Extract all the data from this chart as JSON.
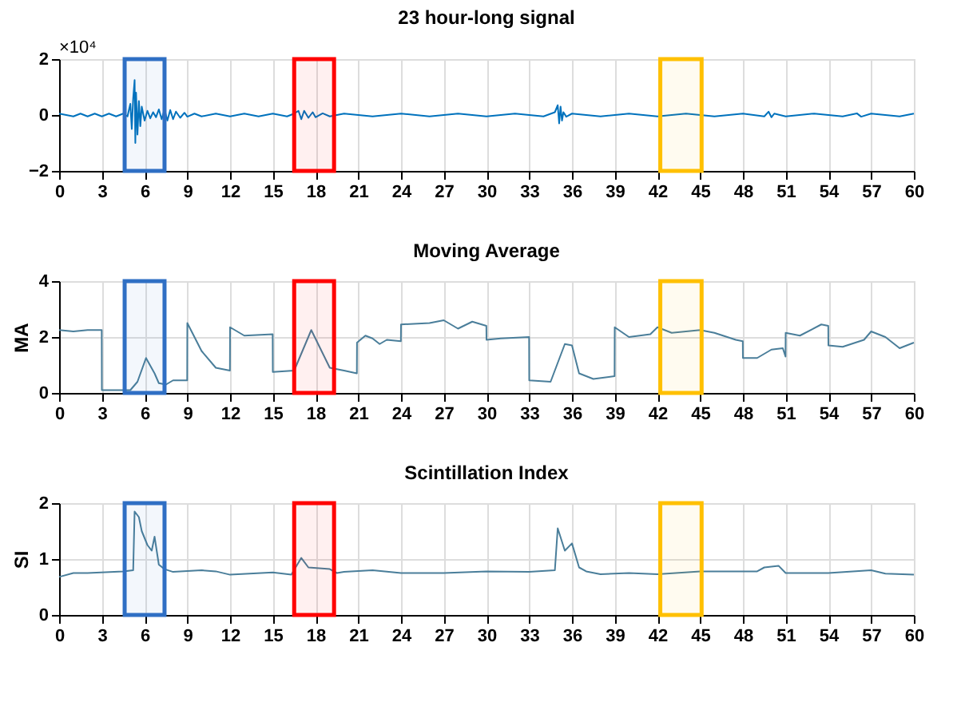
{
  "chart_data": [
    {
      "type": "line",
      "title": "23 hour-long signal",
      "annotations": [
        "×10⁴"
      ],
      "series": [
        {
          "color": "#0072bd",
          "x": [
            0,
            1,
            1.5,
            2,
            2.5,
            3,
            3.5,
            4,
            4.5,
            4.8,
            5,
            5.1,
            5.2,
            5.3,
            5.35,
            5.4,
            5.5,
            5.6,
            5.7,
            5.8,
            6,
            6.2,
            6.4,
            6.6,
            6.8,
            7,
            7.2,
            7.4,
            7.6,
            7.8,
            8,
            8.2,
            8.5,
            8.8,
            9,
            9.5,
            10,
            11,
            12,
            13,
            14,
            15,
            16,
            16.5,
            16.8,
            17,
            17.2,
            17.5,
            17.8,
            18,
            18.5,
            19,
            20,
            22,
            24,
            26,
            28,
            30,
            32,
            34,
            34.8,
            35,
            35.1,
            35.2,
            35.3,
            35.4,
            35.6,
            36,
            38,
            40,
            42,
            44,
            46,
            48,
            49.5,
            49.8,
            50,
            50.2,
            51,
            53,
            55,
            56,
            56.3,
            57,
            59,
            60
          ],
          "values": [
            0.05,
            -0.05,
            0.05,
            -0.05,
            0.05,
            -0.05,
            0.05,
            -0.05,
            0.05,
            -0.05,
            0.4,
            -0.5,
            0.6,
            1.25,
            -1.0,
            0.8,
            -0.7,
            0.5,
            -0.4,
            0.3,
            -0.2,
            0.15,
            -0.12,
            0.1,
            -0.08,
            0.2,
            -0.15,
            0.2,
            -0.2,
            0.18,
            -0.15,
            0.12,
            -0.1,
            0.08,
            -0.06,
            0.05,
            -0.05,
            0.05,
            -0.05,
            0.05,
            -0.05,
            0.05,
            -0.05,
            0.05,
            0.15,
            -0.15,
            0.15,
            -0.1,
            0.1,
            -0.08,
            0.06,
            -0.05,
            0.05,
            -0.05,
            0.05,
            -0.05,
            0.05,
            -0.05,
            0.05,
            -0.05,
            0.1,
            0.35,
            -0.3,
            0.3,
            -0.2,
            0.1,
            -0.06,
            0.05,
            -0.05,
            0.05,
            -0.05,
            0.05,
            -0.05,
            0.05,
            -0.05,
            0.12,
            -0.08,
            0.05,
            -0.05,
            0.05,
            -0.05,
            0.06,
            -0.06,
            0.05,
            -0.05,
            0.05
          ]
        }
      ],
      "xlim": [
        0,
        60
      ],
      "xticks": [
        0,
        3,
        6,
        9,
        12,
        15,
        18,
        21,
        24,
        27,
        30,
        33,
        36,
        39,
        42,
        45,
        48,
        51,
        54,
        57,
        60
      ],
      "ylim": [
        -2,
        2
      ],
      "yticks": [
        -2,
        0,
        2
      ],
      "grid": "x",
      "bands": [
        {
          "axis": "x",
          "from": 4.6,
          "to": 7.4,
          "color": "#2f6fc4"
        },
        {
          "axis": "x",
          "from": 16.5,
          "to": 19.3,
          "color": "#ff0000"
        },
        {
          "axis": "x",
          "from": 42.2,
          "to": 45.1,
          "color": "#ffc000"
        }
      ]
    },
    {
      "type": "line",
      "title": "Moving Average",
      "ylabel": "MA",
      "series": [
        {
          "color": "#4a7e9a",
          "x": [
            0,
            1,
            2,
            2.99,
            3,
            4,
            5,
            5.5,
            6.1,
            6.7,
            7,
            7.5,
            8,
            8.99,
            9,
            10,
            11,
            11.99,
            12,
            13,
            14.99,
            15,
            16.5,
            17.7,
            19,
            20,
            20.9,
            20.91,
            21.5,
            22,
            22.5,
            23,
            23.99,
            24,
            26,
            27,
            28,
            29,
            29.99,
            30,
            31,
            32.99,
            33,
            34.5,
            35.5,
            36,
            36.5,
            37.5,
            38.99,
            39,
            40,
            41.5,
            42,
            43,
            45,
            46,
            47.5,
            47.99,
            48,
            49,
            50,
            50.8,
            50.99,
            51,
            52,
            53.5,
            53.99,
            54,
            55,
            56.5,
            57,
            58,
            59,
            60
          ],
          "values": [
            2.25,
            2.2,
            2.25,
            2.25,
            0.1,
            0.1,
            0.1,
            0.4,
            1.25,
            0.7,
            0.35,
            0.3,
            0.45,
            0.45,
            2.5,
            1.5,
            0.9,
            0.8,
            2.35,
            2.05,
            2.1,
            0.75,
            0.8,
            2.25,
            0.9,
            0.8,
            0.7,
            1.8,
            2.05,
            1.95,
            1.75,
            1.9,
            1.85,
            2.45,
            2.5,
            2.6,
            2.3,
            2.55,
            2.4,
            1.9,
            1.95,
            2.0,
            0.45,
            0.4,
            1.75,
            1.7,
            0.7,
            0.5,
            0.6,
            2.35,
            2.0,
            2.1,
            2.35,
            2.15,
            2.25,
            2.15,
            1.9,
            1.85,
            1.25,
            1.25,
            1.55,
            1.6,
            1.3,
            2.15,
            2.05,
            2.45,
            2.4,
            1.7,
            1.65,
            1.9,
            2.2,
            2.0,
            1.6,
            1.8
          ]
        }
      ],
      "xlim": [
        0,
        60
      ],
      "xticks": [
        0,
        3,
        6,
        9,
        12,
        15,
        18,
        21,
        24,
        27,
        30,
        33,
        36,
        39,
        42,
        45,
        48,
        51,
        54,
        57,
        60
      ],
      "ylim": [
        0,
        4
      ],
      "yticks": [
        0,
        2,
        4
      ],
      "grid": true,
      "bands": [
        {
          "axis": "x",
          "from": 4.6,
          "to": 7.4,
          "color": "#2f6fc4"
        },
        {
          "axis": "x",
          "from": 16.5,
          "to": 19.3,
          "color": "#ff0000"
        },
        {
          "axis": "x",
          "from": 42.2,
          "to": 45.1,
          "color": "#ffc000"
        }
      ]
    },
    {
      "type": "line",
      "title": "Scintillation Index",
      "ylabel": "SI",
      "series": [
        {
          "color": "#4a7e9a",
          "x": [
            0,
            1,
            2,
            4.5,
            5.2,
            5.3,
            5.6,
            5.8,
            6.2,
            6.5,
            6.7,
            7,
            7.4,
            8,
            10,
            11,
            12,
            15,
            16.3,
            17,
            17.5,
            19,
            19.5,
            20,
            22,
            24,
            27,
            30,
            33,
            34.8,
            35,
            35.5,
            36,
            36.5,
            37,
            38,
            40,
            42,
            45,
            48,
            49,
            49.5,
            50.5,
            51,
            54,
            57,
            58,
            60
          ],
          "values": [
            0.68,
            0.75,
            0.75,
            0.78,
            0.8,
            1.85,
            1.75,
            1.5,
            1.25,
            1.15,
            1.4,
            0.9,
            0.82,
            0.77,
            0.8,
            0.78,
            0.72,
            0.76,
            0.72,
            1.02,
            0.85,
            0.82,
            0.75,
            0.77,
            0.8,
            0.75,
            0.75,
            0.78,
            0.77,
            0.8,
            1.55,
            1.15,
            1.28,
            0.85,
            0.78,
            0.73,
            0.75,
            0.73,
            0.78,
            0.78,
            0.78,
            0.85,
            0.88,
            0.75,
            0.75,
            0.8,
            0.74,
            0.72
          ]
        }
      ],
      "xlim": [
        0,
        60
      ],
      "xticks": [
        0,
        3,
        6,
        9,
        12,
        15,
        18,
        21,
        24,
        27,
        30,
        33,
        36,
        39,
        42,
        45,
        48,
        51,
        54,
        57,
        60
      ],
      "ylim": [
        0,
        2
      ],
      "yticks": [
        0,
        1,
        2
      ],
      "grid": true,
      "bands": [
        {
          "axis": "x",
          "from": 4.6,
          "to": 7.4,
          "color": "#2f6fc4"
        },
        {
          "axis": "x",
          "from": 16.5,
          "to": 19.3,
          "color": "#ff0000"
        },
        {
          "axis": "x",
          "from": 42.2,
          "to": 45.1,
          "color": "#ffc000"
        }
      ]
    }
  ]
}
